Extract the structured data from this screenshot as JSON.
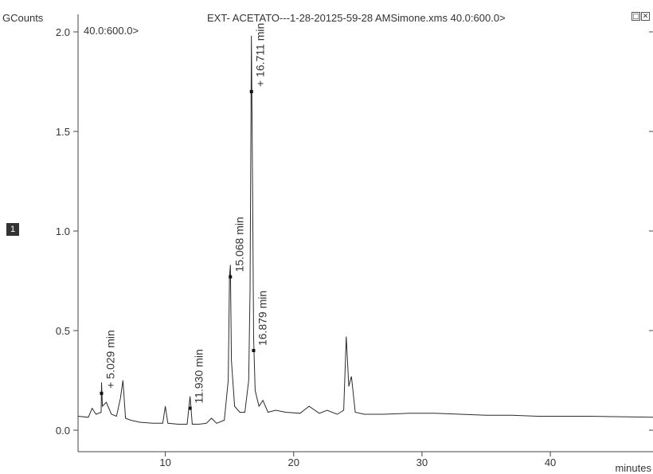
{
  "header": {
    "y_unit": "GCounts",
    "file_title": "EXT- ACETATO---1-28-20125-59-28 AMSimone.xms 40.0:600.0>",
    "range_label": "40.0:600.0>"
  },
  "trace_badge": "1",
  "window_buttons": {
    "restore_icon": "restore-icon",
    "close_icon": "close-icon",
    "restore_glyph": "□",
    "close_glyph": "✕"
  },
  "chart_data": {
    "type": "line",
    "xlabel": "minutes",
    "ylabel": "GCounts",
    "xlim": [
      3.2,
      48
    ],
    "ylim": [
      -0.06,
      2.02
    ],
    "x_ticks": [
      10,
      20,
      30,
      40
    ],
    "y_ticks": [
      0.0,
      0.5,
      1.0,
      1.5,
      2.0
    ],
    "y_tick_labels": [
      "0.0",
      "0.5",
      "1.0",
      "1.5",
      "2.0"
    ],
    "grid": false,
    "line_color": "#2b2b2b",
    "series": [
      {
        "x": [
          3.2,
          4.0,
          4.3,
          4.6,
          5.0,
          5.03,
          5.1,
          5.4,
          5.8,
          6.2,
          6.5,
          6.7,
          6.9,
          7.3,
          8.0,
          9.0,
          9.8,
          10.0,
          10.2,
          11.0,
          11.7,
          11.93,
          12.1,
          12.6,
          13.2,
          13.6,
          14.0,
          14.6,
          14.9,
          15.0,
          15.068,
          15.15,
          15.4,
          15.8,
          16.2,
          16.5,
          16.6,
          16.711,
          16.8,
          16.879,
          17.0,
          17.3,
          17.6,
          18.0,
          18.6,
          19.4,
          20.5,
          21.2,
          22.0,
          22.6,
          23.4,
          23.9,
          24.1,
          24.3,
          24.5,
          24.8,
          25.5,
          27.0,
          29.0,
          31.0,
          33.0,
          35.0,
          37.0,
          39.0,
          41.0,
          43.0,
          45.0,
          48.0
        ],
        "y": [
          0.07,
          0.065,
          0.11,
          0.08,
          0.09,
          0.24,
          0.12,
          0.14,
          0.08,
          0.07,
          0.16,
          0.25,
          0.06,
          0.05,
          0.04,
          0.035,
          0.035,
          0.12,
          0.035,
          0.03,
          0.03,
          0.17,
          0.03,
          0.03,
          0.035,
          0.06,
          0.035,
          0.05,
          0.25,
          0.77,
          0.83,
          0.35,
          0.12,
          0.09,
          0.09,
          0.25,
          0.7,
          1.98,
          1.2,
          0.46,
          0.2,
          0.12,
          0.15,
          0.09,
          0.1,
          0.09,
          0.085,
          0.12,
          0.085,
          0.1,
          0.08,
          0.1,
          0.47,
          0.22,
          0.27,
          0.09,
          0.08,
          0.08,
          0.085,
          0.085,
          0.08,
          0.075,
          0.075,
          0.07,
          0.07,
          0.07,
          0.068,
          0.065
        ]
      }
    ],
    "annotations": [
      {
        "x": 5.029,
        "y": 0.185,
        "label": "+ 5.029 min"
      },
      {
        "x": 11.93,
        "y": 0.11,
        "label": "11.930 min"
      },
      {
        "x": 15.068,
        "y": 0.77,
        "label": "15.068 min"
      },
      {
        "x": 16.711,
        "y": 1.7,
        "label": "+ 16.711 min"
      },
      {
        "x": 16.879,
        "y": 0.4,
        "label": "16.879 min"
      }
    ]
  }
}
